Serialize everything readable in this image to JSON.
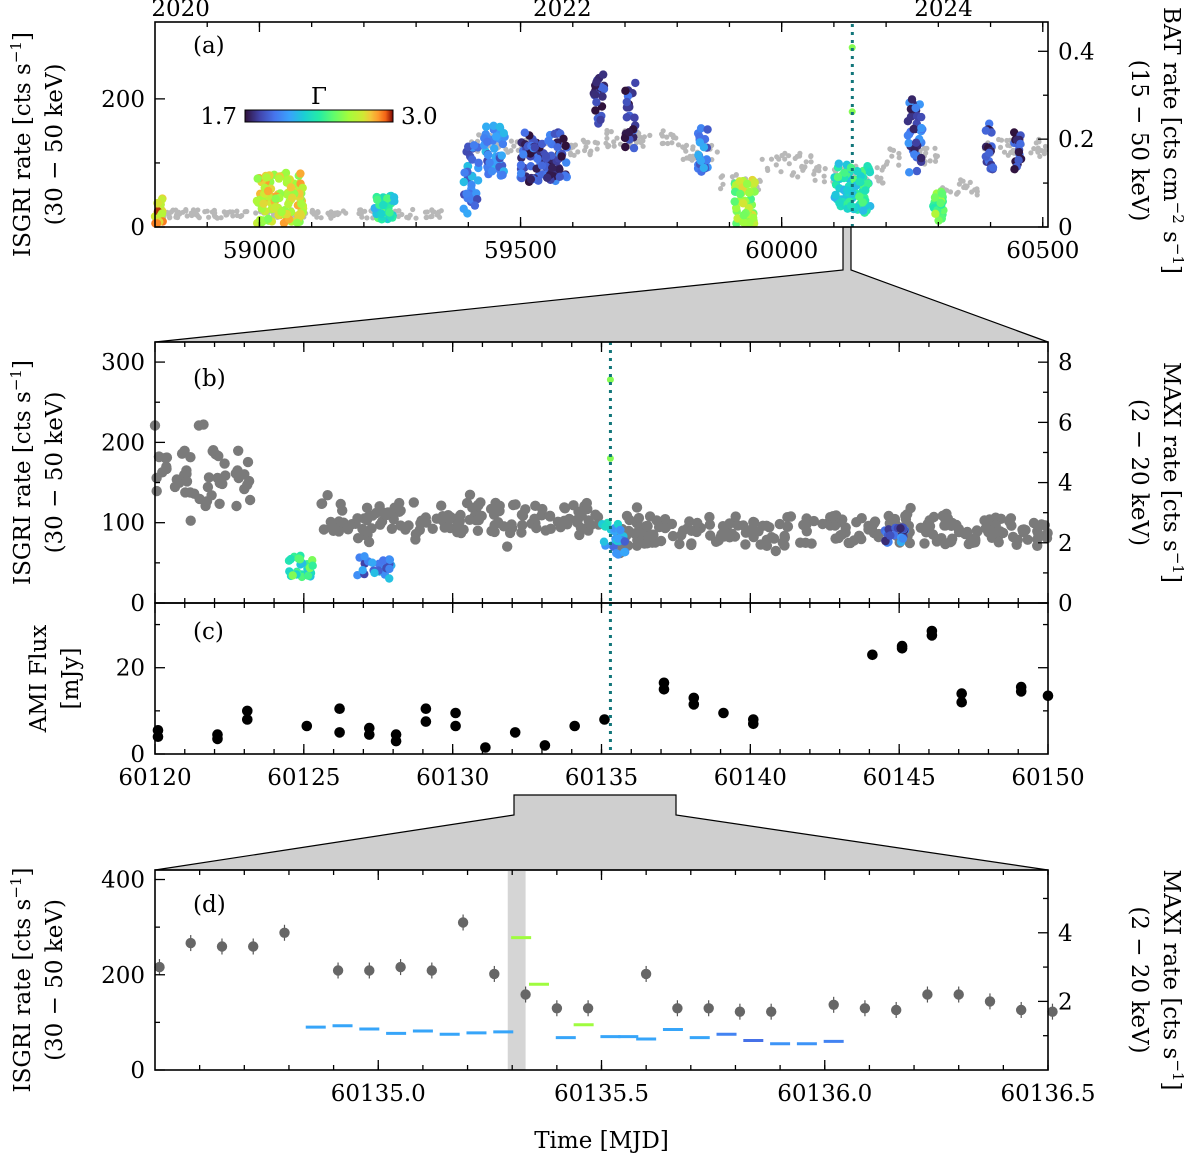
{
  "chart_data": [
    {
      "panel": "a",
      "type": "scatter",
      "tag": "(a)",
      "ylabel_left": [
        "ISGRI rate [cts s",
        "−1",
        "]",
        "(30 − 50 keV)"
      ],
      "ylabel_right": [
        "BAT rate [cts cm",
        "−2",
        " s",
        "−1",
        "]",
        "(15 − 50 keV)"
      ],
      "xlim": [
        58800,
        60510
      ],
      "ylim": [
        0,
        320
      ],
      "ylim_right": [
        0,
        0.4667
      ],
      "xticks": [
        "59000",
        "59500",
        "60000",
        "60500"
      ],
      "yticks": [
        "0",
        "200"
      ],
      "yticks_right": [
        "0",
        "0.2",
        "0.4"
      ],
      "top_axis_ticks": [
        "2020",
        "2022",
        "2024"
      ],
      "colorbar": {
        "label": "Γ",
        "min": "1.7",
        "max": "3.0"
      },
      "marker_mjd": 60135.3,
      "series": [
        {
          "name": "BAT (grey)",
          "color": "#b8b8b8",
          "segments": [
            [
              58800,
              59350,
              0.03,
              0.01
            ],
            [
              59400,
              59470,
              0.19,
              0.02
            ],
            [
              59470,
              59530,
              0.18,
              0.02
            ],
            [
              59530,
              59650,
              0.18,
              0.02
            ],
            [
              59650,
              59800,
              0.2,
              0.02
            ],
            [
              59800,
              59880,
              0.17,
              0.02
            ],
            [
              59880,
              59960,
              0.1,
              0.02
            ],
            [
              59960,
              60060,
              0.14,
              0.03
            ],
            [
              60060,
              60200,
              0.12,
              0.02
            ],
            [
              60200,
              60300,
              0.16,
              0.02
            ],
            [
              60300,
              60380,
              0.09,
              0.02
            ],
            [
              60380,
              60510,
              0.18,
              0.02
            ]
          ]
        },
        {
          "name": "ISGRI (Γ-coloured)",
          "groups": [
            [
              58800,
              58815,
              25,
              20,
              2.8
            ],
            [
              58995,
              59085,
              45,
              40,
              2.7
            ],
            [
              59220,
              59260,
              30,
              20,
              2.3
            ],
            [
              59390,
              59420,
              80,
              60,
              2.0
            ],
            [
              59430,
              59470,
              120,
              40,
              2.0
            ],
            [
              59500,
              59590,
              110,
              40,
              1.85
            ],
            [
              59640,
              59660,
              200,
              40,
              1.75
            ],
            [
              59700,
              59720,
              180,
              60,
              1.8
            ],
            [
              59840,
              59860,
              120,
              40,
              1.95
            ],
            [
              59910,
              59950,
              40,
              35,
              2.6
            ],
            [
              60100,
              60170,
              60,
              40,
              2.3
            ],
            [
              60240,
              60270,
              140,
              60,
              1.9
            ],
            [
              60290,
              60310,
              30,
              25,
              2.5
            ],
            [
              60390,
              60405,
              130,
              40,
              1.8
            ],
            [
              60445,
              60460,
              120,
              30,
              1.8
            ]
          ]
        }
      ]
    },
    {
      "panel": "b",
      "type": "scatter",
      "tag": "(b)",
      "ylabel_left": [
        "ISGRI rate [cts s",
        "−1",
        "]",
        "(30 − 50 keV)"
      ],
      "ylabel_right": [
        "MAXI rate [cts s",
        "−1",
        "]",
        "(2 − 20 keV)"
      ],
      "xlim": [
        60120,
        60150
      ],
      "ylim": [
        0,
        325
      ],
      "ylim_right": [
        0,
        8.67
      ],
      "yticks": [
        "0",
        "100",
        "200",
        "300"
      ],
      "yticks_right": [
        "0",
        "2",
        "4",
        "6",
        "8"
      ],
      "marker_mjd": 60135.3,
      "series": [
        {
          "name": "MAXI (grey)",
          "color": "#7a7a7a",
          "segments": [
            [
              60120,
              60123.3,
              4.2,
              1.0
            ],
            [
              60125.5,
              60135,
              2.8,
              0.55
            ],
            [
              60135.5,
              60150,
              2.4,
              0.5
            ]
          ]
        },
        {
          "name": "ISGRI (Γ-coloured)",
          "groups": [
            [
              60124.5,
              60125.3,
              45,
              15,
              2.35
            ],
            [
              60126.8,
              60128,
              45,
              15,
              2.0
            ],
            [
              60135,
              60135.8,
              80,
              20,
              2.1
            ],
            [
              60144.5,
              60145.2,
              85,
              10,
              1.95
            ]
          ]
        }
      ]
    },
    {
      "panel": "c",
      "type": "scatter",
      "tag": "(c)",
      "ylabel_left": [
        "AMI Flux",
        "[mJy]"
      ],
      "xlim": [
        60120,
        60150
      ],
      "ylim": [
        0,
        35
      ],
      "xticks": [
        "60120",
        "60125",
        "60130",
        "60135",
        "60140",
        "60145",
        "60150"
      ],
      "yticks": [
        "0",
        "20"
      ],
      "marker_mjd": 60135.3,
      "series": [
        {
          "name": "AMI",
          "color": "#000000",
          "x": [
            60120.1,
            60120.1,
            60122.1,
            60122.1,
            60123.1,
            60123.1,
            60125.1,
            60126.2,
            60126.2,
            60127.2,
            60127.2,
            60128.1,
            60128.1,
            60129.1,
            60129.1,
            60130.1,
            60130.1,
            60131.1,
            60132.1,
            60133.1,
            60134.1,
            60135.1,
            60137.1,
            60137.1,
            60138.1,
            60138.1,
            60139.1,
            60140.1,
            60140.1,
            60144.1,
            60145.1,
            60145.1,
            60146.1,
            60146.1,
            60147.1,
            60147.1,
            60149.1,
            60149.1,
            60150.0
          ],
          "y": [
            5.5,
            4,
            4.5,
            3.5,
            10,
            8,
            6.5,
            10.5,
            5,
            6,
            4.5,
            4.5,
            3,
            10.5,
            7.5,
            9.5,
            6.5,
            1.5,
            5,
            2,
            6.5,
            8,
            16.5,
            15,
            13,
            11.5,
            9.5,
            8,
            7,
            23,
            25,
            24.5,
            28.5,
            27.5,
            14,
            12,
            15.5,
            14.5,
            13.5
          ]
        }
      ]
    },
    {
      "panel": "d",
      "type": "scatter",
      "tag": "(d)",
      "ylabel_left": [
        "ISGRI rate [cts s",
        "−1",
        "]",
        "(30 − 50 keV)"
      ],
      "ylabel_right": [
        "MAXI rate [cts s",
        "−1",
        "]",
        "(2 − 20 keV)"
      ],
      "xlabel": "Time [MJD]",
      "xlim": [
        60134.5,
        60136.5
      ],
      "ylim": [
        0,
        420
      ],
      "ylim_right": [
        0,
        5.83
      ],
      "xticks": [
        "60135.0",
        "60135.5",
        "60136.0",
        "60136.5"
      ],
      "yticks": [
        "0",
        "200",
        "400"
      ],
      "yticks_right": [
        "2",
        "4"
      ],
      "shaded_band": [
        60135.29,
        60135.33
      ],
      "series": [
        {
          "name": "MAXI",
          "color": "#666666",
          "x": [
            60134.51,
            60134.58,
            60134.65,
            60134.72,
            60134.79,
            60134.91,
            60134.98,
            60135.05,
            60135.12,
            60135.19,
            60135.26,
            60135.33,
            60135.4,
            60135.47,
            60135.6,
            60135.67,
            60135.74,
            60135.81,
            60135.88,
            60136.02,
            60136.09,
            60136.16,
            60136.23,
            60136.3,
            60136.37,
            60136.44,
            60136.51
          ],
          "y": [
            3.0,
            3.7,
            3.6,
            3.6,
            4.0,
            2.9,
            2.9,
            3.0,
            2.9,
            4.3,
            2.8,
            2.2,
            1.8,
            1.8,
            2.8,
            1.8,
            1.8,
            1.7,
            1.7,
            1.9,
            1.8,
            1.75,
            2.2,
            2.2,
            2.0,
            1.75,
            1.7
          ]
        },
        {
          "name": "ISGRI bins",
          "x": [
            60134.86,
            60134.92,
            60134.98,
            60135.04,
            60135.1,
            60135.16,
            60135.22,
            60135.28,
            60135.32,
            60135.36,
            60135.42,
            60135.46,
            60135.52,
            60135.56,
            60135.6,
            60135.66,
            60135.72,
            60135.78,
            60135.84,
            60135.9,
            60135.96,
            60136.02
          ],
          "y": [
            90,
            93,
            86,
            77,
            82,
            75,
            78,
            80,
            278,
            180,
            68,
            95,
            70,
            70,
            65,
            85,
            68,
            75,
            62,
            55,
            55,
            60
          ],
          "gamma": [
            2.1,
            2.1,
            2.1,
            2.1,
            2.1,
            2.1,
            2.1,
            2.1,
            2.6,
            2.6,
            2.1,
            2.6,
            2.1,
            2.1,
            2.1,
            2.1,
            2.1,
            2.0,
            1.95,
            2.05,
            2.05,
            2.0
          ]
        }
      ]
    }
  ]
}
